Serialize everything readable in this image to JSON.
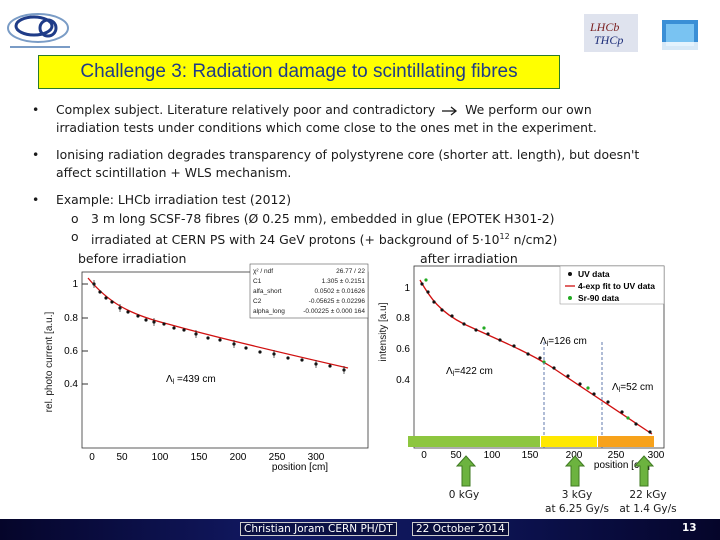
{
  "header": {
    "title": "Challenge 3: Radiation damage to scintillating fibres"
  },
  "bullets": [
    {
      "line1_a": "Complex subject. Literature relatively poor and contradictory",
      "line1_b": "We perform our own",
      "line2": "irradiation tests under conditions which come close to the ones met in the experiment."
    },
    {
      "line1": "Ionising radiation degrades transparency of polystyrene core (shorter att. length), but doesn't",
      "line2": "affect scintillation + WLS mechanism."
    },
    {
      "line1": "Example: LHCb irradiation test (2012)",
      "sub1": "3 m long SCSF-78 fibres (Ø 0.25 mm), embedded in glue (EPOTEK H301-2)",
      "sub2_a": "irradiated at CERN PS with 24 GeV protons  (+ background of 5·10",
      "sub2_sup": "12",
      "sub2_b": " n/cm2)"
    }
  ],
  "labels": {
    "before": "before irradiation",
    "after": "after irradiation"
  },
  "left_plot": {
    "ylabel": "rel. photo current [a.u.]",
    "xlabel": "position [cm]",
    "xticks": [
      "0",
      "50",
      "100",
      "150",
      "200",
      "250",
      "300"
    ],
    "yticks": [
      "0.4",
      "0.6",
      "0.8",
      "1"
    ],
    "annotation": "Λ",
    "annotation_sub": "l",
    "annotation_rest": " =439 cm",
    "fitbox": [
      {
        "k": "χ² / ndf",
        "v": "26.77 / 22"
      },
      {
        "k": "C1",
        "v": "1.305 ± 0.2151"
      },
      {
        "k": "alfa_short",
        "v": "0.0502 ± 0.01626"
      },
      {
        "k": "C2",
        "v": "-0.05625 ± 0.02296"
      },
      {
        "k": "alpha_long",
        "v": "-0.00225 ± 0.000 164"
      }
    ]
  },
  "right_plot": {
    "ylabel": "intensity [a.u]",
    "xlabel": "position [cm]",
    "xticks": [
      "0",
      "50",
      "100",
      "150",
      "200",
      "250",
      "300"
    ],
    "yticks": [
      "0.4",
      "0.6",
      "0.8",
      "1"
    ],
    "legend": [
      "UV data",
      "4-exp fit to UV data",
      "Sr-90 data"
    ],
    "ann1": "=126 cm",
    "ann2": "=422 cm",
    "ann3": "=52 cm",
    "lambda": "Λ",
    "lsub": "l"
  },
  "doses": [
    {
      "line1": "0 kGy",
      "line2": ""
    },
    {
      "line1": "3 kGy",
      "line2": "at 6.25 Gy/s"
    },
    {
      "line1": "22 kGy",
      "line2": "at 1.4 Gy/s"
    }
  ],
  "footer": {
    "author": "Christian Joram   CERN  PH/DT",
    "date": "22 October 2014",
    "page": "13"
  },
  "colors": {
    "title_bg": "#ffff00",
    "title_text": "#1f3c88",
    "fit_line": "#d01010",
    "bar_green": "#8dc63f",
    "bar_yellow": "#ffe800",
    "bar_orange": "#f7a21b",
    "arrow_green": "#6cb33f"
  }
}
